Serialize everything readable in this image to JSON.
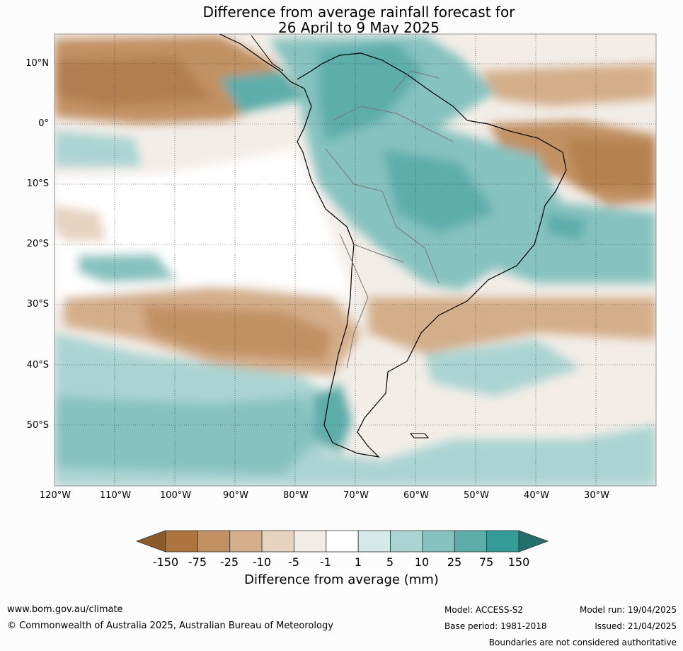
{
  "title": {
    "line1": "Difference from average rainfall forecast for",
    "line2": "26 April to 9 May 2025"
  },
  "axes": {
    "lat_labels": [
      "10°N",
      "0°",
      "10°S",
      "20°S",
      "30°S",
      "40°S",
      "50°S"
    ],
    "lat_values": [
      10,
      0,
      -10,
      -20,
      -30,
      -40,
      -50
    ],
    "lon_labels": [
      "120°W",
      "110°W",
      "100°W",
      "90°W",
      "80°W",
      "70°W",
      "60°W",
      "50°W",
      "40°W",
      "30°W"
    ],
    "lon_values": [
      -120,
      -110,
      -100,
      -90,
      -80,
      -70,
      -60,
      -50,
      -40,
      -30
    ],
    "lat_range": [
      -60,
      15
    ],
    "lon_range": [
      -120,
      -20
    ]
  },
  "colorbar": {
    "label": "Difference from average (mm)",
    "ticks": [
      "-150",
      "-75",
      "-25",
      "-10",
      "-5",
      "-1",
      "1",
      "5",
      "10",
      "25",
      "75",
      "150"
    ],
    "colors": [
      "#8c5a2a",
      "#ad7440",
      "#c29163",
      "#d4ae8a",
      "#e6d2bf",
      "#f3ede8",
      "#ffffff",
      "#d4e9e8",
      "#aad4d3",
      "#86c2c0",
      "#5dadab",
      "#359b97",
      "#236f6d"
    ]
  },
  "footer": {
    "website": "www.bom.gov.au/climate",
    "copyright": "© Commonwealth of Australia 2025, Australian Bureau of Meteorology",
    "model": "Model: ACCESS-S2",
    "base_period": "Base period: 1981-2018",
    "model_run": "Model run: 19/04/2025",
    "issued": "Issued: 21/04/2025",
    "disclaimer": "Boundaries are not considered authoritative"
  }
}
